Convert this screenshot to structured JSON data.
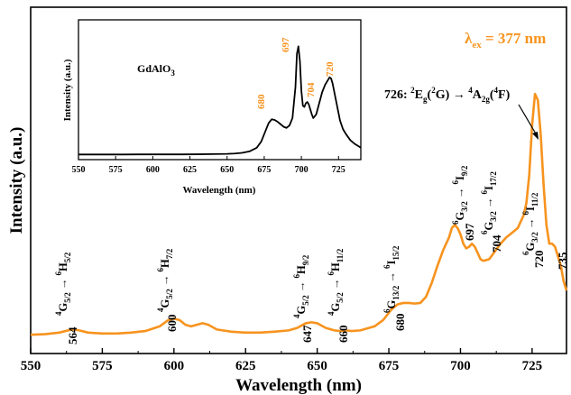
{
  "chart_data": [
    {
      "type": "line",
      "xlabel": "Wavelength (nm)",
      "ylabel": "Intensity (a.u.)",
      "xlim": [
        550,
        737
      ],
      "ylim": [
        0,
        1.0
      ],
      "x_ticks": [
        550,
        575,
        600,
        625,
        650,
        675,
        700,
        725
      ],
      "line_color": "#F7931E",
      "excitation_label": "λex = 377 nm",
      "annotation_726": "726: 2Eg(2G) → 4A2g(4F)",
      "peaks": [
        {
          "label": "564",
          "x": 564,
          "transition": "4G5/2 → 6H5/2"
        },
        {
          "label": "600",
          "x": 600,
          "transition": "4G5/2 → 6H7/2"
        },
        {
          "label": "647",
          "x": 647,
          "transition": "4G5/2 → 6H9/2"
        },
        {
          "label": "660",
          "x": 660,
          "transition": "4G5/2 → 6H11/2"
        },
        {
          "label": "680",
          "x": 680,
          "transition": "6G13/2 → 6I15/2"
        },
        {
          "label": "697",
          "x": 697,
          "transition": "6G3/2 → 6I9/2"
        },
        {
          "label": "704",
          "x": 704,
          "transition": "6G3/2 → 6I17/2"
        },
        {
          "label": "720",
          "x": 720,
          "transition": "6G3/2 → 6I11/2"
        },
        {
          "label": "735",
          "x": 735
        }
      ],
      "series": [
        {
          "x": [
            550,
            555,
            560,
            563,
            565,
            567,
            570,
            575,
            580,
            585,
            590,
            595,
            598,
            600,
            602,
            604,
            606,
            608,
            610,
            612,
            615,
            620,
            625,
            630,
            635,
            640,
            643,
            646,
            648,
            650,
            653,
            656,
            658,
            660,
            662,
            665,
            670,
            673,
            676,
            678,
            680,
            682,
            684,
            686,
            688,
            690,
            692,
            694,
            696,
            697,
            698,
            699,
            700,
            701,
            702,
            703,
            704,
            705,
            706,
            707,
            708,
            710,
            712,
            714,
            716,
            718,
            720,
            721,
            722,
            723,
            724,
            725,
            726,
            727,
            728,
            729,
            730,
            731,
            732,
            733,
            734,
            735,
            736,
            737
          ],
          "y": [
            0.008,
            0.01,
            0.015,
            0.022,
            0.025,
            0.022,
            0.015,
            0.012,
            0.012,
            0.015,
            0.02,
            0.035,
            0.055,
            0.06,
            0.055,
            0.04,
            0.035,
            0.04,
            0.045,
            0.04,
            0.025,
            0.018,
            0.015,
            0.015,
            0.018,
            0.022,
            0.03,
            0.045,
            0.048,
            0.045,
            0.03,
            0.022,
            0.02,
            0.022,
            0.02,
            0.022,
            0.035,
            0.055,
            0.09,
            0.105,
            0.11,
            0.11,
            0.108,
            0.11,
            0.13,
            0.175,
            0.23,
            0.28,
            0.32,
            0.35,
            0.36,
            0.35,
            0.33,
            0.3,
            0.285,
            0.29,
            0.3,
            0.29,
            0.27,
            0.25,
            0.245,
            0.25,
            0.275,
            0.3,
            0.32,
            0.335,
            0.35,
            0.37,
            0.39,
            0.43,
            0.52,
            0.68,
            0.78,
            0.76,
            0.65,
            0.49,
            0.36,
            0.3,
            0.3,
            0.29,
            0.26,
            0.23,
            0.18,
            0.15
          ]
        }
      ]
    },
    {
      "type": "line",
      "title": "GdAlO3",
      "xlabel": "Wavelength (nm)",
      "ylabel": "Intensity (a.u.)",
      "xlim": [
        550,
        740
      ],
      "ylim": [
        0,
        1.0
      ],
      "x_ticks": [
        550,
        575,
        600,
        625,
        650,
        675,
        700,
        725
      ],
      "peak_color": "#F7931E",
      "peaks": [
        {
          "label": "680",
          "x": 680
        },
        {
          "label": "697",
          "x": 697
        },
        {
          "label": "704",
          "x": 704
        },
        {
          "label": "720",
          "x": 720
        }
      ],
      "series": [
        {
          "x": [
            550,
            560,
            570,
            580,
            590,
            600,
            610,
            620,
            630,
            640,
            650,
            655,
            660,
            665,
            670,
            673,
            676,
            678,
            680,
            682,
            684,
            686,
            688,
            690,
            692,
            694,
            696,
            697,
            698,
            699,
            700,
            701,
            702,
            703,
            704,
            705,
            706,
            707,
            708,
            710,
            712,
            714,
            716,
            718,
            719,
            720,
            721,
            722,
            724,
            726,
            728,
            730,
            733,
            736,
            740
          ],
          "y": [
            0.005,
            0.005,
            0.005,
            0.005,
            0.006,
            0.006,
            0.006,
            0.006,
            0.007,
            0.008,
            0.01,
            0.013,
            0.018,
            0.03,
            0.06,
            0.11,
            0.2,
            0.26,
            0.29,
            0.285,
            0.27,
            0.25,
            0.23,
            0.22,
            0.24,
            0.3,
            0.55,
            0.82,
            0.88,
            0.76,
            0.52,
            0.4,
            0.39,
            0.42,
            0.43,
            0.41,
            0.37,
            0.33,
            0.3,
            0.33,
            0.42,
            0.51,
            0.57,
            0.61,
            0.63,
            0.62,
            0.58,
            0.52,
            0.4,
            0.28,
            0.21,
            0.17,
            0.12,
            0.09,
            0.06
          ]
        }
      ]
    }
  ]
}
